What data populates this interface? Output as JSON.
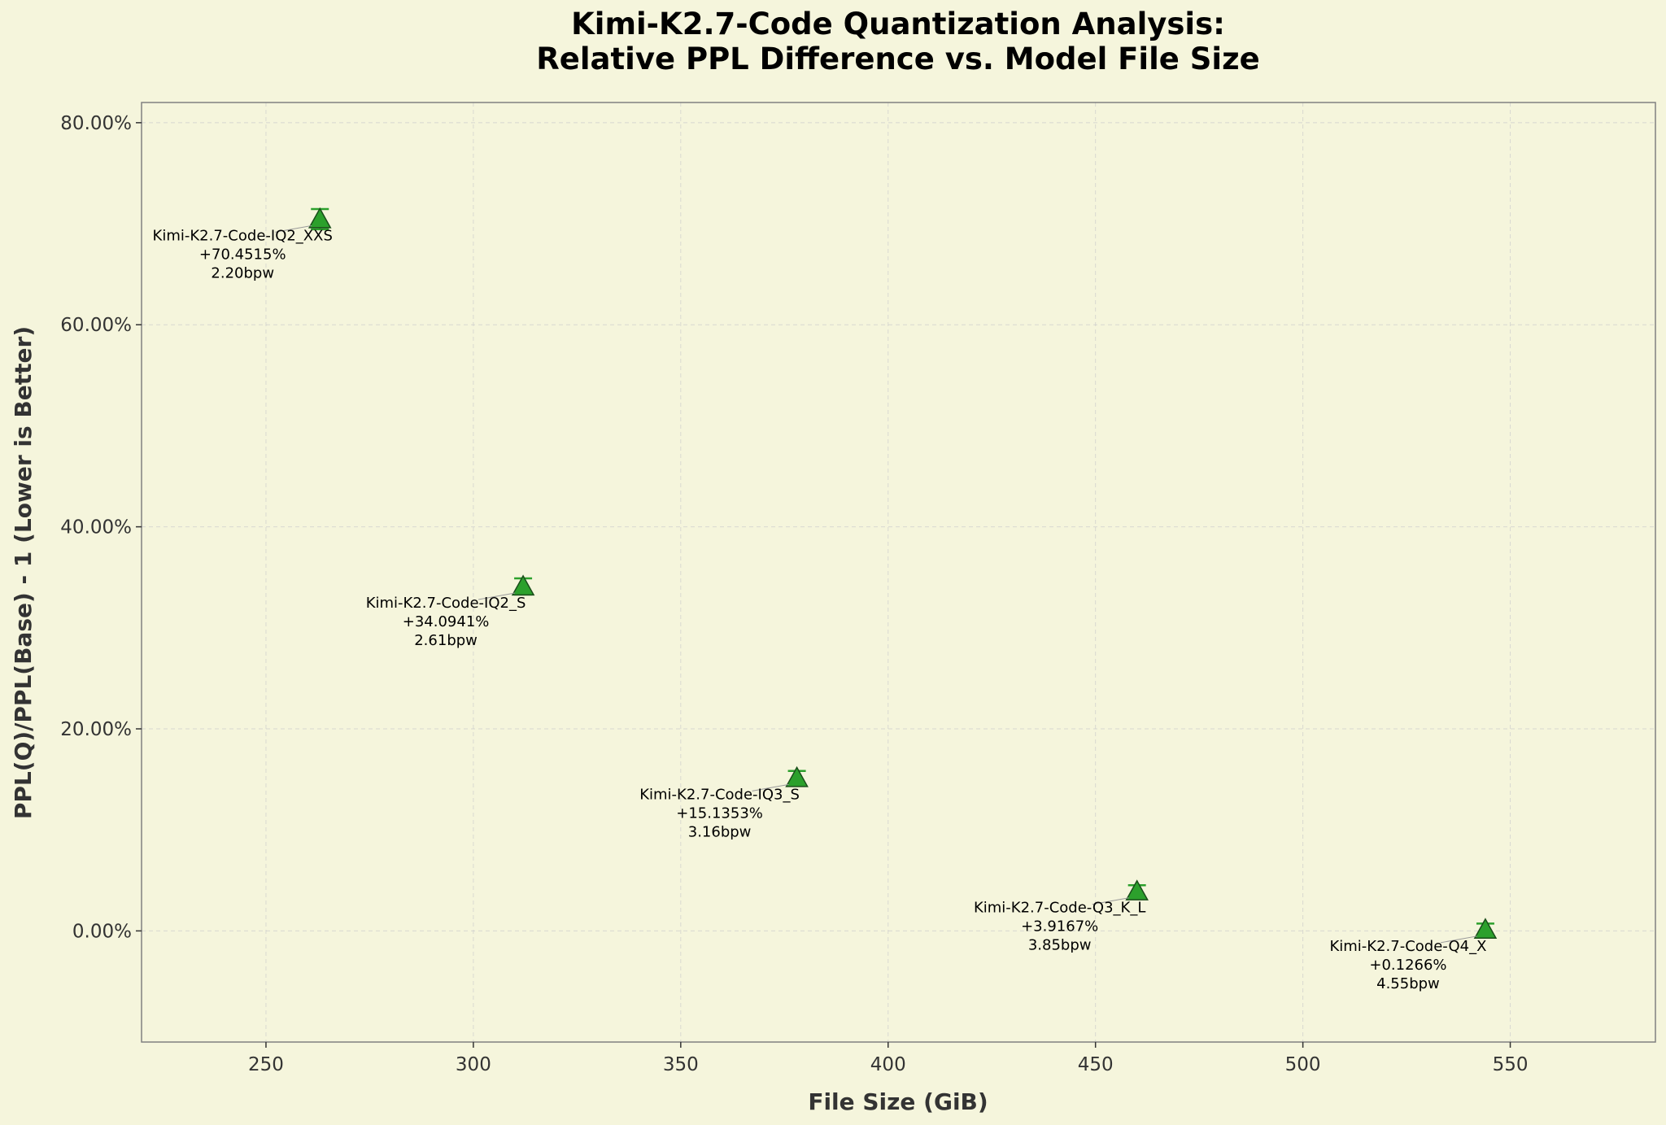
{
  "chart_data": {
    "type": "scatter",
    "title": [
      "Kimi-K2.7-Code Quantization Analysis:",
      "Relative PPL Difference vs. Model File Size"
    ],
    "xlabel": "File Size (GiB)",
    "ylabel": "PPL(Q)/PPL(Base) - 1 (Lower is Better)",
    "xlim": [
      220,
      585
    ],
    "ylim": [
      -11,
      82
    ],
    "xticks": [
      250,
      300,
      350,
      400,
      450,
      500,
      550
    ],
    "yticks": [
      0,
      20,
      40,
      60,
      80
    ],
    "ytick_labels": [
      "0.00%",
      "20.00%",
      "40.00%",
      "60.00%",
      "80.00%"
    ],
    "grid": true,
    "marker": "triangle",
    "marker_color": "#2ca02c",
    "errorbar_color": "#2ca02c",
    "background": "#f5f5dc",
    "points": [
      {
        "x": 263,
        "y": 70.4515,
        "err": 1.0,
        "name": "Kimi-K2.7-Code-IQ2_XXS",
        "value_label": "+70.4515%",
        "bpw": "2.20bpw"
      },
      {
        "x": 312,
        "y": 34.0941,
        "err": 0.8,
        "name": "Kimi-K2.7-Code-IQ2_S",
        "value_label": "+34.0941%",
        "bpw": "2.61bpw"
      },
      {
        "x": 378,
        "y": 15.1353,
        "err": 0.7,
        "name": "Kimi-K2.7-Code-IQ3_S",
        "value_label": "+15.1353%",
        "bpw": "3.16bpw"
      },
      {
        "x": 460,
        "y": 3.9167,
        "err": 0.6,
        "name": "Kimi-K2.7-Code-Q3_K_L",
        "value_label": "+3.9167%",
        "bpw": "3.85bpw"
      },
      {
        "x": 544,
        "y": 0.1266,
        "err": 0.6,
        "name": "Kimi-K2.7-Code-Q4_X",
        "value_label": "+0.1266%",
        "bpw": "4.55bpw"
      }
    ]
  }
}
